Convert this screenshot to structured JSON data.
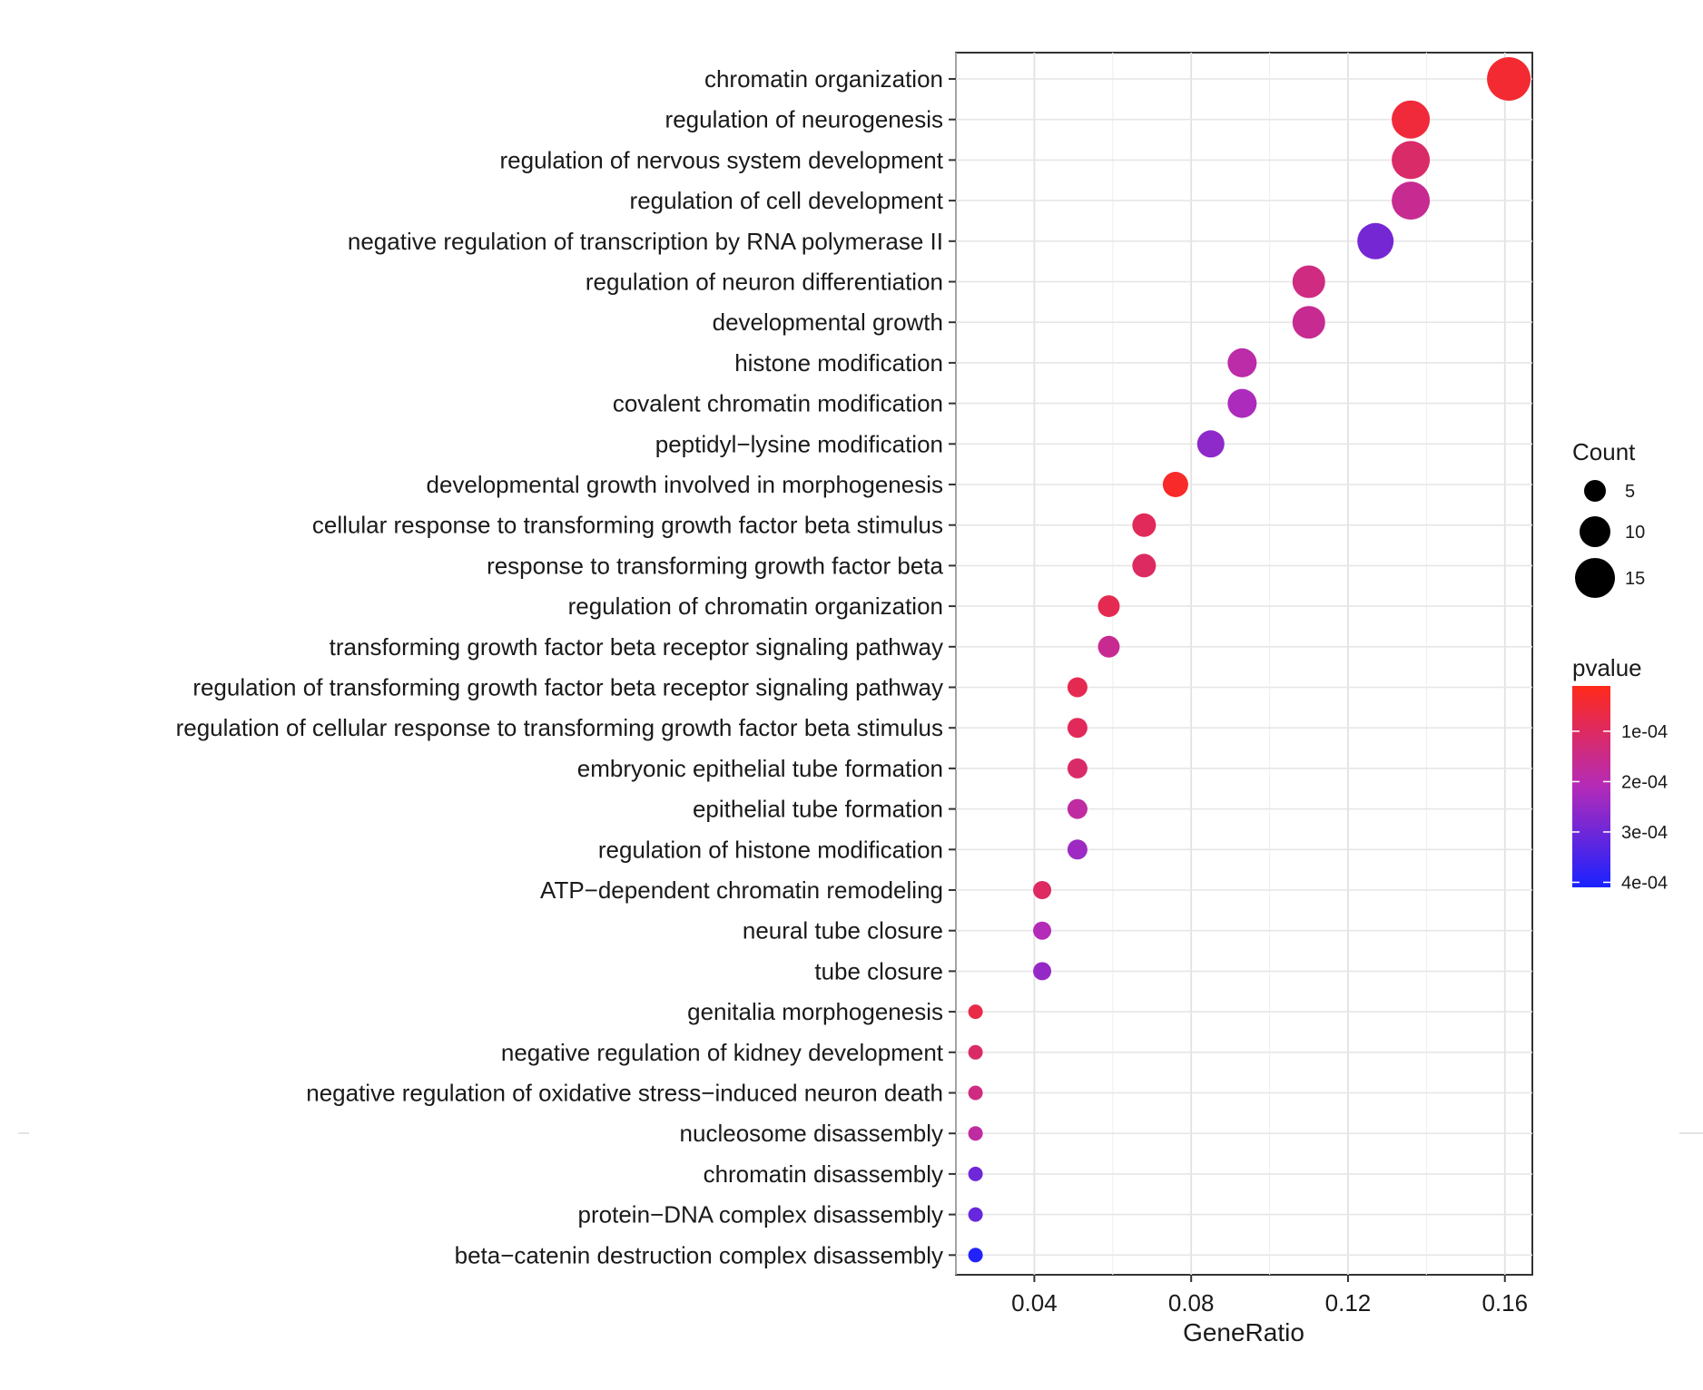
{
  "chart_data": {
    "type": "scatter",
    "title": "",
    "xlabel": "GeneRatio",
    "ylabel": "",
    "xlim": [
      0.02,
      0.167
    ],
    "x_ticks": [
      "0.04",
      "0.08",
      "0.12",
      "0.16"
    ],
    "grid": true,
    "legend_position": "right",
    "size_legend": {
      "title": "Count",
      "entries": [
        "5",
        "10",
        "15"
      ]
    },
    "color_legend": {
      "title": "pvalue",
      "ticks": [
        "1e-04",
        "2e-04",
        "3e-04",
        "4e-04"
      ],
      "low_color": "#ff2a1a",
      "high_color": "#1a22ff"
    },
    "categories": [
      "chromatin organization",
      "regulation of neurogenesis",
      "regulation of nervous system development",
      "regulation of cell development",
      "negative regulation of transcription by RNA polymerase II",
      "regulation of neuron differentiation",
      "developmental growth",
      "histone modification",
      "covalent chromatin modification",
      "peptidyl−lysine modification",
      "developmental growth involved in morphogenesis",
      "cellular response to transforming growth factor beta stimulus",
      "response to transforming growth factor beta",
      "regulation of chromatin organization",
      "transforming growth factor beta receptor signaling pathway",
      "regulation of transforming growth factor beta receptor signaling pathway",
      "regulation of cellular response to transforming growth factor beta stimulus",
      "embryonic epithelial tube formation",
      "epithelial tube formation",
      "regulation of histone modification",
      "ATP−dependent chromatin remodeling",
      "neural tube closure",
      "tube closure",
      "genitalia morphogenesis",
      "negative regulation of kidney development",
      "negative regulation of oxidative stress−induced neuron death",
      "nucleosome disassembly",
      "chromatin disassembly",
      "protein−DNA complex disassembly",
      "beta−catenin destruction complex disassembly"
    ],
    "gene_ratio": [
      0.161,
      0.136,
      0.136,
      0.136,
      0.127,
      0.11,
      0.11,
      0.093,
      0.093,
      0.085,
      0.076,
      0.068,
      0.068,
      0.059,
      0.059,
      0.051,
      0.051,
      0.051,
      0.051,
      0.051,
      0.042,
      0.042,
      0.042,
      0.025,
      0.025,
      0.025,
      0.025,
      0.025,
      0.025,
      0.025
    ],
    "count": [
      19,
      16,
      16,
      16,
      15,
      13,
      13,
      11,
      11,
      10,
      9,
      8,
      8,
      7,
      7,
      6,
      6,
      6,
      6,
      6,
      5,
      5,
      5,
      3,
      3,
      3,
      3,
      3,
      3,
      3
    ],
    "pvalue": [
      4e-05,
      5e-05,
      0.00011,
      0.00016,
      0.00029,
      0.00014,
      0.00016,
      0.00019,
      0.00022,
      0.00026,
      3e-05,
      9e-05,
      0.0001,
      8e-05,
      0.00016,
      8e-05,
      9e-05,
      0.00011,
      0.00018,
      0.00024,
      0.0001,
      0.00021,
      0.00025,
      7e-05,
      0.00011,
      0.00014,
      0.00018,
      0.0003,
      0.00031,
      0.0004
    ]
  }
}
